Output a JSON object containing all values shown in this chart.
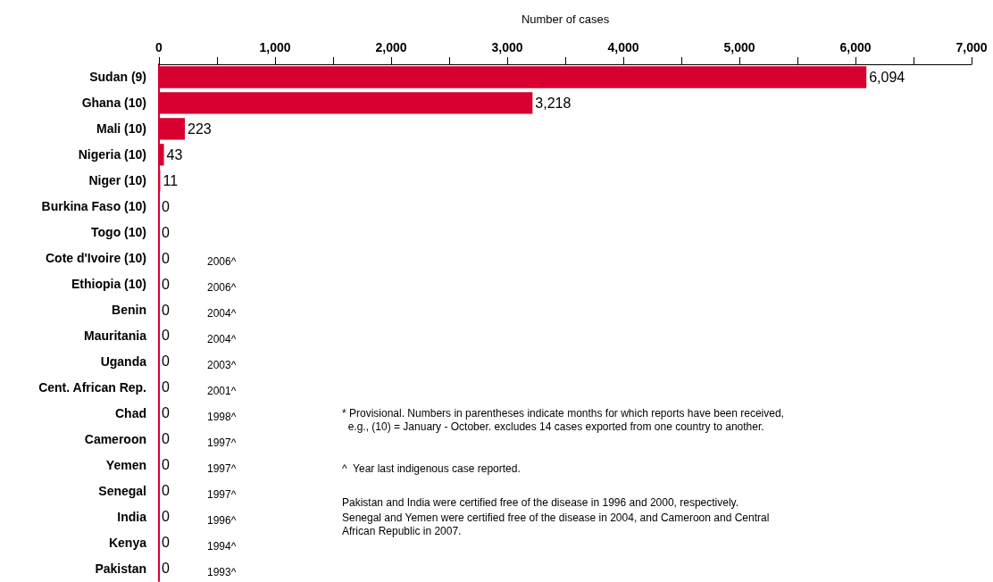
{
  "chart_data": {
    "type": "bar",
    "orientation": "horizontal",
    "xlabel": "Number of cases",
    "categories": [
      "Sudan (9)",
      "Ghana (10)",
      "Mali (10)",
      "Nigeria (10)",
      "Niger (10)",
      "Burkina Faso (10)",
      "Togo (10)",
      "Cote d'Ivoire (10)",
      "Ethiopia (10)",
      "Benin",
      "Mauritania",
      "Uganda",
      "Cent. African Rep.",
      "Chad",
      "Cameroon",
      "Yemen",
      "Senegal",
      "India",
      "Kenya",
      "Pakistan"
    ],
    "values": [
      6094,
      3218,
      223,
      43,
      11,
      0,
      0,
      0,
      0,
      0,
      0,
      0,
      0,
      0,
      0,
      0,
      0,
      0,
      0,
      0
    ],
    "value_labels": [
      "6,094",
      "3,218",
      "223",
      "43",
      "11",
      "0",
      "0",
      "0",
      "0",
      "0",
      "0",
      "0",
      "0",
      "0",
      "0",
      "0",
      "0",
      "0",
      "0",
      "0"
    ],
    "color": "#d7002f",
    "xlim": [
      0,
      7000
    ],
    "xticks": [
      {
        "value": 0,
        "label": "0"
      },
      {
        "value": 500,
        "label": null
      },
      {
        "value": 1000,
        "label": "1,000"
      },
      {
        "value": 1500,
        "label": null
      },
      {
        "value": 2000,
        "label": "2,000"
      },
      {
        "value": 2500,
        "label": null
      },
      {
        "value": 3000,
        "label": "3,000"
      },
      {
        "value": 3500,
        "label": null
      },
      {
        "value": 4000,
        "label": "4,000"
      },
      {
        "value": 4500,
        "label": null
      },
      {
        "value": 5000,
        "label": "5,000"
      },
      {
        "value": 5500,
        "label": null
      },
      {
        "value": 6000,
        "label": "6,000"
      },
      {
        "value": 6500,
        "label": null
      },
      {
        "value": 7000,
        "label": "7,000"
      }
    ],
    "grid": false,
    "annotations": [
      "2006^",
      "2006^",
      "2004^",
      "2004^",
      "2003^",
      "2001^",
      "1998^",
      "1997^",
      "1997^",
      "1997^",
      "1996^",
      "1994^",
      "1993^",
      "* Provisional. Numbers in parentheses indicate months for which reports have been received,\n  e.g., (10) = January - October. excludes 14 cases exported from one country to another.",
      "^  Year last indigenous case reported.",
      "Pakistan and India were certified free of the disease in 1996 and 2000, respectively.",
      "Senegal and Yemen were certified free of the disease in 2004, and Cameroon and Central\nAfrican Republic in 2007."
    ]
  }
}
